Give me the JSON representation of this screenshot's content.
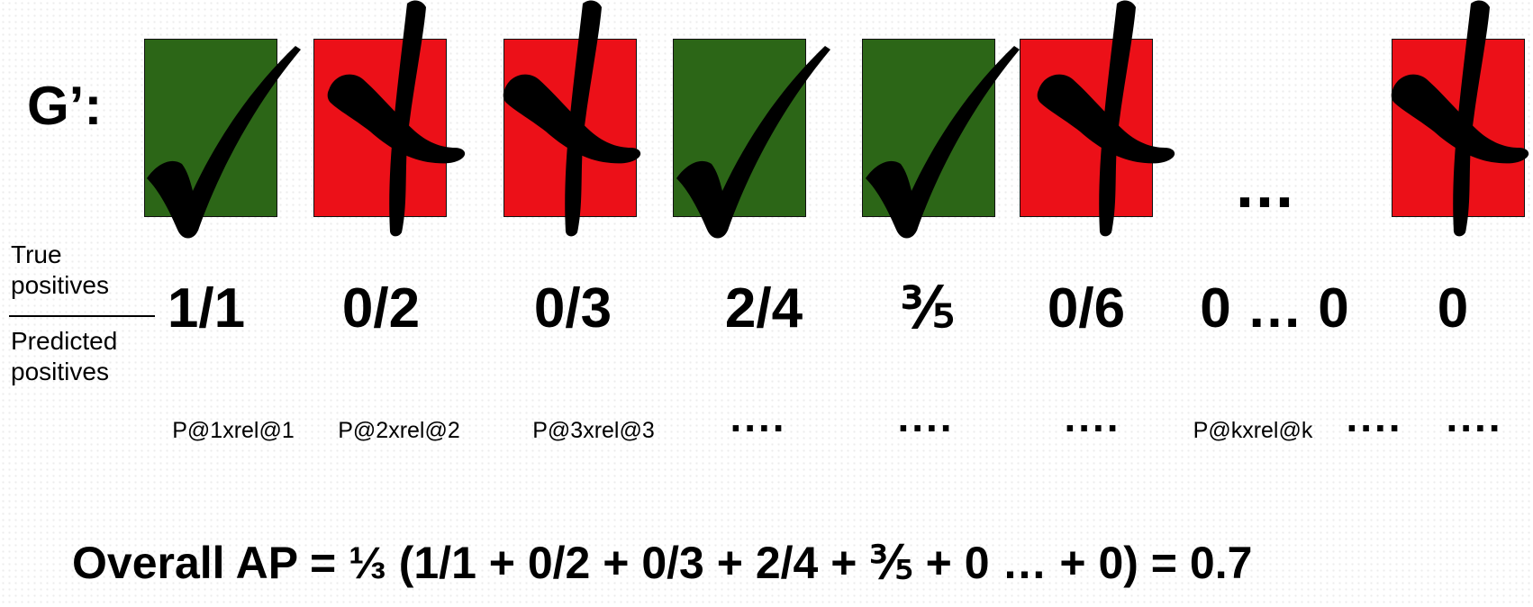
{
  "row_label": "G’:",
  "cells": [
    {
      "status": "correct",
      "icon": "checkmark-icon",
      "color": "#2c6617"
    },
    {
      "status": "incorrect",
      "icon": "cross-icon",
      "color": "#ec1018"
    },
    {
      "status": "incorrect",
      "icon": "cross-icon",
      "color": "#ec1018"
    },
    {
      "status": "correct",
      "icon": "checkmark-icon",
      "color": "#2c6617"
    },
    {
      "status": "correct",
      "icon": "checkmark-icon",
      "color": "#2c6617"
    },
    {
      "status": "incorrect",
      "icon": "cross-icon",
      "color": "#ec1018"
    },
    {
      "status": "incorrect",
      "icon": "cross-icon",
      "color": "#ec1018"
    }
  ],
  "cells_ellipsis": "...",
  "ratio_label": {
    "numerator_line1": "True",
    "numerator_line2": "positives",
    "denominator_line1": "Predicted",
    "denominator_line2": "positives"
  },
  "fractions": [
    "1/1",
    "0/2",
    "0/3",
    "2/4",
    "⅗",
    "0/6",
    "0 … 0",
    "0"
  ],
  "precision_terms": [
    "P@1xrel@1",
    "P@2xrel@2",
    "P@3xrel@3",
    "....",
    "....",
    "....",
    "P@kxrel@k",
    "....",
    "...."
  ],
  "formula": "Overall AP = ⅓ (1/1 + 0/2 + 0/3 + 2/4 + ⅗ + 0 … + 0) =  0.7"
}
